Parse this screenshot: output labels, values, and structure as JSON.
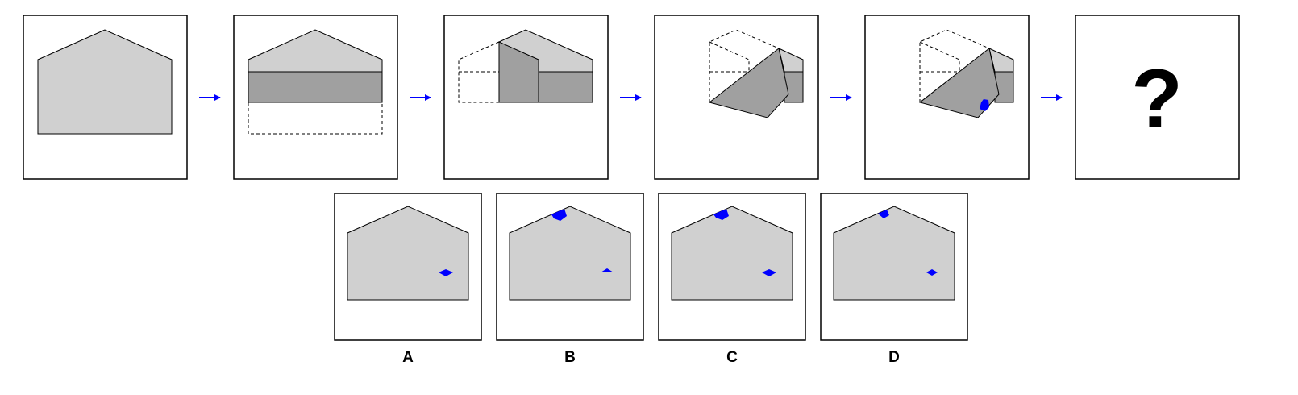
{
  "sequence": {
    "question_mark": "?"
  },
  "options": [
    {
      "label": "A"
    },
    {
      "label": "B"
    },
    {
      "label": "C"
    },
    {
      "label": "D"
    }
  ],
  "colors": {
    "paper_light": "#d0d0d0",
    "paper_folded": "#a0a0a0",
    "hole": "#0000ff",
    "arrow": "#0000ff",
    "frame": "#000000"
  }
}
